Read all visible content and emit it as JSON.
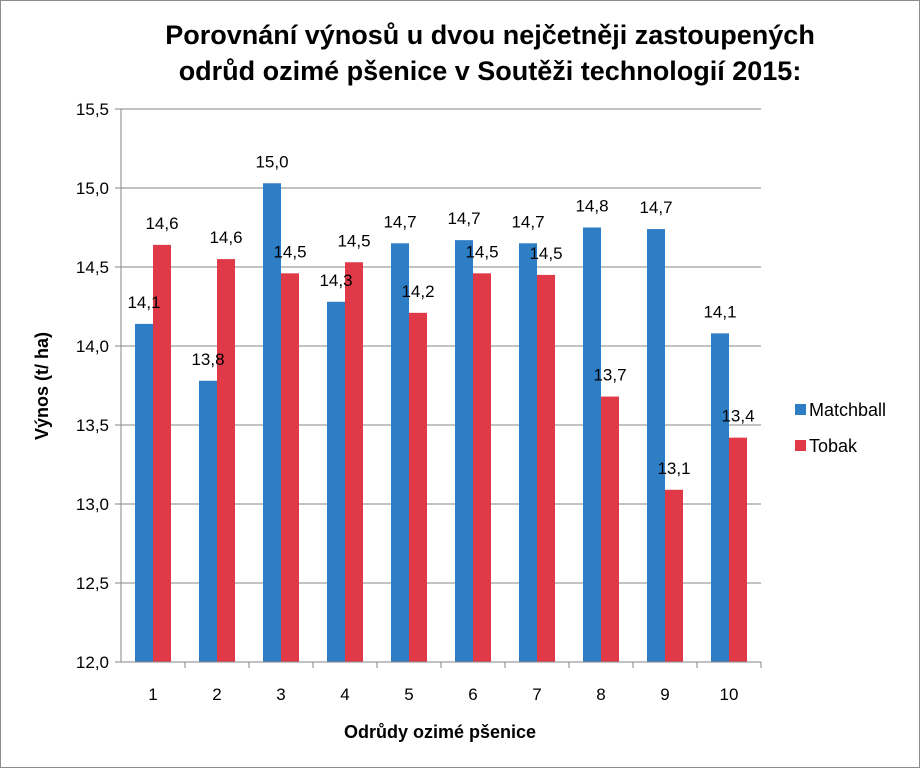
{
  "chart_data": {
    "type": "bar",
    "title_lines": [
      "Porovnání výnosů u dvou nejčetněji zastoupených",
      "odrůd ozimé pšenice v Soutěži technologií 2015:"
    ],
    "xlabel": "Odrůdy ozimé pšenice",
    "ylabel": "Výnos (t/ ha)",
    "ylim": [
      12.0,
      15.5
    ],
    "ystep": 0.5,
    "ytick_labels": [
      "12,0",
      "12,5",
      "13,0",
      "13,5",
      "14,0",
      "14,5",
      "15,0",
      "15,5"
    ],
    "categories": [
      "1",
      "2",
      "3",
      "4",
      "5",
      "6",
      "7",
      "8",
      "9",
      "10"
    ],
    "grid": true,
    "legend_position": "right",
    "series": [
      {
        "name": "Matchball",
        "color": "#2e7ec6",
        "values": [
          14.14,
          13.78,
          15.03,
          14.28,
          14.65,
          14.67,
          14.65,
          14.75,
          14.74,
          14.08
        ],
        "labels": [
          "14,1",
          "13,8",
          "15,0",
          "14,3",
          "14,7",
          "14,7",
          "14,7",
          "14,8",
          "14,7",
          "14,1"
        ]
      },
      {
        "name": "Tobak",
        "color": "#e03a48",
        "values": [
          14.64,
          14.55,
          14.46,
          14.53,
          14.21,
          14.46,
          14.45,
          13.68,
          13.09,
          13.42
        ],
        "labels": [
          "14,6",
          "14,6",
          "14,5",
          "14,5",
          "14,2",
          "14,5",
          "14,5",
          "13,7",
          "13,1",
          "13,4"
        ]
      }
    ]
  }
}
